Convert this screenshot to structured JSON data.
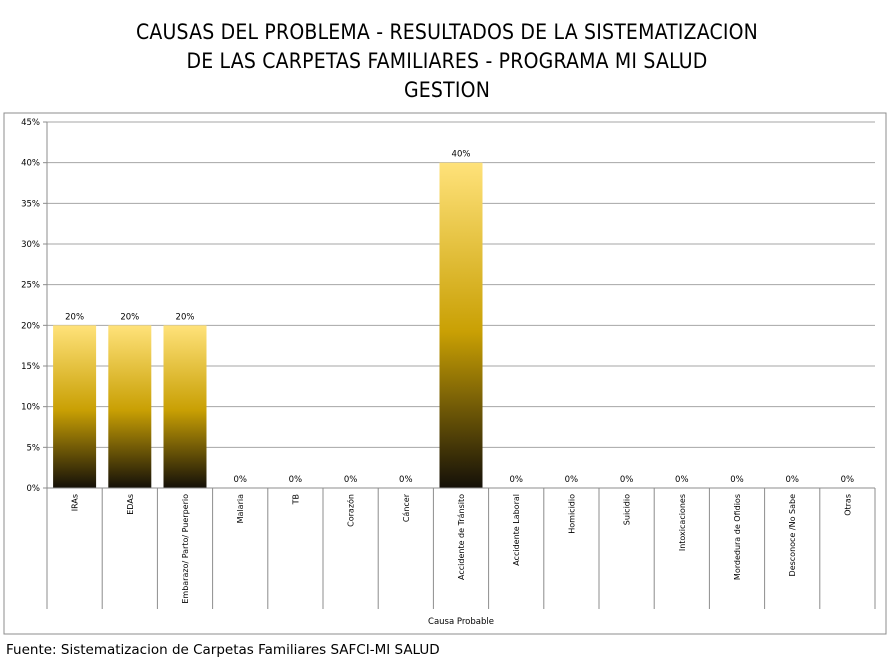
{
  "chart_data": {
    "type": "bar",
    "title_lines": [
      "CAUSAS DEL PROBLEMA - RESULTADOS DE LA SISTEMATIZACION",
      "DE LAS CARPETAS FAMILIARES - PROGRAMA MI SALUD",
      "GESTION"
    ],
    "xlabel": "Causa Probable",
    "ylabel": "",
    "ylim": [
      0,
      45
    ],
    "yticks": [
      "0%",
      "5%",
      "10%",
      "15%",
      "20%",
      "25%",
      "30%",
      "35%",
      "40%",
      "45%"
    ],
    "categories": [
      "IRAs",
      "EDAs",
      "Embarazo/ Parto/ Puerperio",
      "Malaria",
      "TB",
      "Corazón",
      "Cáncer",
      "Accidente de Tránsito",
      "Accidente Laboral",
      "Homicidio",
      "Suicidio",
      "Intoxicaciones",
      "Mordedura de Ofidios",
      "Desconoce /No Sabe",
      "Otras"
    ],
    "values": [
      20,
      20,
      20,
      0,
      0,
      0,
      0,
      40,
      0,
      0,
      0,
      0,
      0,
      0,
      0
    ],
    "data_labels": [
      "20%",
      "20%",
      "20%",
      "0%",
      "0%",
      "0%",
      "0%",
      "40%",
      "0%",
      "0%",
      "0%",
      "0%",
      "0%",
      "0%",
      "0%"
    ],
    "grid": true,
    "legend": "none",
    "colors": {
      "bar_top": "#FFE27A",
      "bar_mid": "#C9A004",
      "bar_bottom": "#141008",
      "grid": "#A6A6A6"
    }
  },
  "source_text": "Fuente: Sistematizacion de Carpetas Familiares SAFCI-MI SALUD"
}
